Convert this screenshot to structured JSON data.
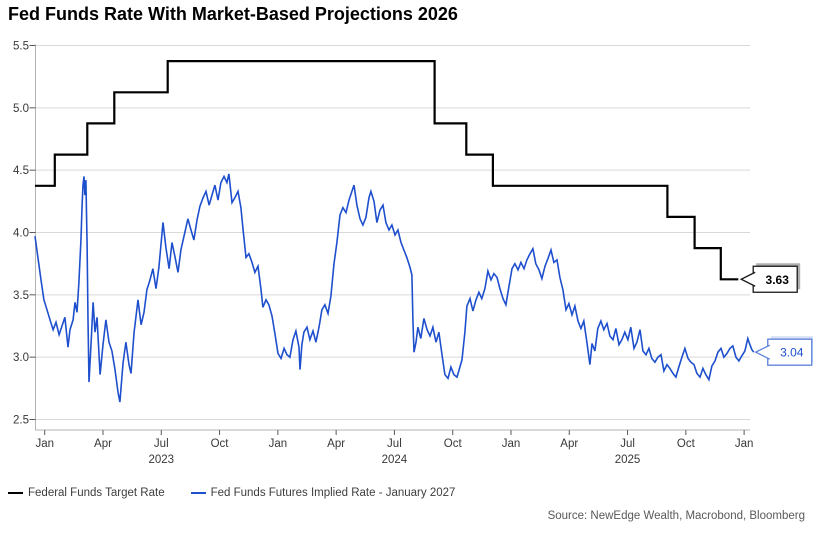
{
  "title": "Fed Funds Rate With Market-Based Projections 2026",
  "source": "Source: NewEdge Wealth, Macrobond, Bloomberg",
  "legend": [
    {
      "label": "Federal Funds Target Rate",
      "color": "#000000",
      "thickness": 2.6
    },
    {
      "label": "Fed Funds Futures Implied Rate - January 2027",
      "color": "#1e4fcd",
      "thickness": 2.2
    }
  ],
  "colors": {
    "target_rate_line": "#000000",
    "implied_rate_line": "#1e4fcd",
    "gridline": "#d9d9d9",
    "axis_line": "#b3b3b3",
    "tick_mark": "#595959",
    "tick_label": "#383838",
    "background": "#ffffff"
  },
  "chart_data": {
    "type": "line",
    "title": "Fed Funds Rate With Market-Based Projections 2026",
    "x_unit": "months since 2023-01-01",
    "x_range": [
      0,
      36.8
    ],
    "y_range": [
      2.5,
      5.5
    ],
    "grid": "horizontal",
    "legend_position": "bottom-left",
    "y_axis": {
      "values": [
        5.5,
        5.0,
        4.5,
        4.0,
        3.5,
        3.0,
        2.5
      ],
      "labels": [
        "5.5",
        "5.0",
        "4.5",
        "4.0",
        "3.5",
        "3.0",
        "2.5"
      ]
    },
    "x_axis": {
      "ticks": [
        {
          "t": 0.5,
          "label": "Jan"
        },
        {
          "t": 3.5,
          "label": "Apr"
        },
        {
          "t": 6.5,
          "label": "Jul"
        },
        {
          "t": 9.5,
          "label": "Oct"
        },
        {
          "t": 12.5,
          "label": "Jan"
        },
        {
          "t": 15.5,
          "label": "Apr"
        },
        {
          "t": 18.5,
          "label": "Jul"
        },
        {
          "t": 21.5,
          "label": "Oct"
        },
        {
          "t": 24.5,
          "label": "Jan"
        },
        {
          "t": 27.5,
          "label": "Apr"
        },
        {
          "t": 30.5,
          "label": "Jul"
        },
        {
          "t": 33.5,
          "label": "Oct"
        },
        {
          "t": 36.5,
          "label": "Jan"
        }
      ],
      "years": [
        {
          "t": 6.5,
          "label": "2023"
        },
        {
          "t": 18.5,
          "label": "2024"
        },
        {
          "t": 30.5,
          "label": "2025"
        }
      ]
    },
    "series": [
      {
        "name": "Federal Funds Target Rate",
        "style": "step",
        "color": "#000000",
        "width": 2.2,
        "end_label": "3.63",
        "points": [
          [
            0,
            4.375
          ],
          [
            1.02,
            4.625
          ],
          [
            2.69,
            4.875
          ],
          [
            4.08,
            5.125
          ],
          [
            6.83,
            5.375
          ],
          [
            20.57,
            4.875
          ],
          [
            22.2,
            4.625
          ],
          [
            23.57,
            4.375
          ],
          [
            32.55,
            4.125
          ],
          [
            33.95,
            3.875
          ],
          [
            35.3,
            3.625
          ],
          [
            36.2,
            3.625
          ]
        ]
      },
      {
        "name": "Fed Funds Futures Implied Rate - January 2027",
        "style": "line",
        "color": "#1e4fcd",
        "width": 1.6,
        "end_label": "3.04",
        "points": [
          [
            0,
            3.97
          ],
          [
            0.15,
            3.8
          ],
          [
            0.31,
            3.62
          ],
          [
            0.46,
            3.46
          ],
          [
            0.62,
            3.38
          ],
          [
            0.77,
            3.3
          ],
          [
            0.93,
            3.22
          ],
          [
            1.08,
            3.28
          ],
          [
            1.24,
            3.18
          ],
          [
            1.39,
            3.25
          ],
          [
            1.54,
            3.32
          ],
          [
            1.7,
            3.08
          ],
          [
            1.8,
            3.22
          ],
          [
            1.96,
            3.3
          ],
          [
            2.06,
            3.44
          ],
          [
            2.16,
            3.36
          ],
          [
            2.26,
            3.6
          ],
          [
            2.37,
            3.95
          ],
          [
            2.42,
            4.2
          ],
          [
            2.47,
            4.38
          ],
          [
            2.52,
            4.45
          ],
          [
            2.57,
            4.3
          ],
          [
            2.62,
            4.42
          ],
          [
            2.68,
            3.9
          ],
          [
            2.73,
            3.3
          ],
          [
            2.78,
            2.8
          ],
          [
            2.88,
            3.1
          ],
          [
            2.99,
            3.44
          ],
          [
            3.09,
            3.2
          ],
          [
            3.19,
            3.32
          ],
          [
            3.35,
            2.86
          ],
          [
            3.5,
            3.1
          ],
          [
            3.65,
            3.3
          ],
          [
            3.81,
            3.12
          ],
          [
            3.96,
            3.05
          ],
          [
            4.12,
            2.9
          ],
          [
            4.27,
            2.72
          ],
          [
            4.37,
            2.64
          ],
          [
            4.53,
            2.95
          ],
          [
            4.68,
            3.12
          ],
          [
            4.84,
            2.94
          ],
          [
            4.94,
            2.87
          ],
          [
            5.1,
            3.2
          ],
          [
            5.3,
            3.46
          ],
          [
            5.46,
            3.26
          ],
          [
            5.61,
            3.36
          ],
          [
            5.76,
            3.54
          ],
          [
            5.92,
            3.62
          ],
          [
            6.07,
            3.71
          ],
          [
            6.23,
            3.55
          ],
          [
            6.38,
            3.72
          ],
          [
            6.59,
            4.08
          ],
          [
            6.74,
            3.88
          ],
          [
            6.9,
            3.71
          ],
          [
            7.05,
            3.92
          ],
          [
            7.21,
            3.8
          ],
          [
            7.36,
            3.68
          ],
          [
            7.51,
            3.86
          ],
          [
            7.67,
            3.97
          ],
          [
            7.87,
            4.11
          ],
          [
            8.03,
            4.02
          ],
          [
            8.18,
            3.94
          ],
          [
            8.34,
            4.1
          ],
          [
            8.49,
            4.21
          ],
          [
            8.65,
            4.28
          ],
          [
            8.8,
            4.33
          ],
          [
            8.96,
            4.22
          ],
          [
            9.11,
            4.3
          ],
          [
            9.26,
            4.38
          ],
          [
            9.42,
            4.26
          ],
          [
            9.57,
            4.4
          ],
          [
            9.73,
            4.45
          ],
          [
            9.88,
            4.4
          ],
          [
            9.98,
            4.47
          ],
          [
            10.14,
            4.24
          ],
          [
            10.29,
            4.28
          ],
          [
            10.45,
            4.33
          ],
          [
            10.6,
            4.2
          ],
          [
            10.71,
            4.02
          ],
          [
            10.86,
            3.8
          ],
          [
            11.01,
            3.83
          ],
          [
            11.17,
            3.76
          ],
          [
            11.32,
            3.68
          ],
          [
            11.48,
            3.73
          ],
          [
            11.63,
            3.55
          ],
          [
            11.73,
            3.4
          ],
          [
            11.89,
            3.46
          ],
          [
            12.04,
            3.42
          ],
          [
            12.2,
            3.33
          ],
          [
            12.35,
            3.19
          ],
          [
            12.51,
            3.03
          ],
          [
            12.66,
            2.99
          ],
          [
            12.82,
            3.07
          ],
          [
            12.97,
            3.02
          ],
          [
            13.12,
            3.0
          ],
          [
            13.28,
            3.14
          ],
          [
            13.43,
            3.21
          ],
          [
            13.59,
            3.08
          ],
          [
            13.64,
            2.9
          ],
          [
            13.74,
            3.1
          ],
          [
            13.84,
            3.2
          ],
          [
            14.0,
            3.24
          ],
          [
            14.15,
            3.14
          ],
          [
            14.31,
            3.21
          ],
          [
            14.46,
            3.12
          ],
          [
            14.62,
            3.24
          ],
          [
            14.77,
            3.38
          ],
          [
            14.92,
            3.42
          ],
          [
            15.08,
            3.35
          ],
          [
            15.23,
            3.49
          ],
          [
            15.39,
            3.75
          ],
          [
            15.54,
            3.92
          ],
          [
            15.7,
            4.14
          ],
          [
            15.85,
            4.2
          ],
          [
            16.01,
            4.16
          ],
          [
            16.16,
            4.26
          ],
          [
            16.31,
            4.33
          ],
          [
            16.42,
            4.38
          ],
          [
            16.57,
            4.22
          ],
          [
            16.73,
            4.11
          ],
          [
            16.88,
            4.06
          ],
          [
            17.03,
            4.12
          ],
          [
            17.19,
            4.28
          ],
          [
            17.29,
            4.33
          ],
          [
            17.45,
            4.25
          ],
          [
            17.6,
            4.08
          ],
          [
            17.76,
            4.18
          ],
          [
            17.91,
            4.22
          ],
          [
            18.06,
            4.08
          ],
          [
            18.22,
            4.02
          ],
          [
            18.37,
            4.06
          ],
          [
            18.53,
            3.98
          ],
          [
            18.68,
            4.02
          ],
          [
            18.84,
            3.92
          ],
          [
            18.99,
            3.86
          ],
          [
            19.14,
            3.8
          ],
          [
            19.3,
            3.72
          ],
          [
            19.4,
            3.66
          ],
          [
            19.45,
            3.3
          ],
          [
            19.51,
            3.04
          ],
          [
            19.61,
            3.12
          ],
          [
            19.71,
            3.24
          ],
          [
            19.86,
            3.15
          ],
          [
            20.02,
            3.31
          ],
          [
            20.18,
            3.22
          ],
          [
            20.33,
            3.17
          ],
          [
            20.48,
            3.24
          ],
          [
            20.64,
            3.12
          ],
          [
            20.79,
            3.2
          ],
          [
            20.95,
            3.02
          ],
          [
            21.1,
            2.86
          ],
          [
            21.26,
            2.83
          ],
          [
            21.41,
            2.92
          ],
          [
            21.56,
            2.86
          ],
          [
            21.72,
            2.84
          ],
          [
            21.87,
            2.92
          ],
          [
            21.98,
            2.98
          ],
          [
            22.13,
            3.2
          ],
          [
            22.23,
            3.41
          ],
          [
            22.39,
            3.47
          ],
          [
            22.54,
            3.37
          ],
          [
            22.7,
            3.46
          ],
          [
            22.85,
            3.52
          ],
          [
            23.0,
            3.47
          ],
          [
            23.16,
            3.55
          ],
          [
            23.31,
            3.69
          ],
          [
            23.47,
            3.62
          ],
          [
            23.62,
            3.67
          ],
          [
            23.78,
            3.64
          ],
          [
            23.93,
            3.55
          ],
          [
            24.09,
            3.47
          ],
          [
            24.24,
            3.42
          ],
          [
            24.39,
            3.56
          ],
          [
            24.55,
            3.71
          ],
          [
            24.7,
            3.75
          ],
          [
            24.86,
            3.7
          ],
          [
            25.01,
            3.76
          ],
          [
            25.17,
            3.71
          ],
          [
            25.32,
            3.78
          ],
          [
            25.48,
            3.83
          ],
          [
            25.63,
            3.87
          ],
          [
            25.78,
            3.75
          ],
          [
            25.94,
            3.7
          ],
          [
            26.09,
            3.63
          ],
          [
            26.25,
            3.73
          ],
          [
            26.4,
            3.79
          ],
          [
            26.56,
            3.86
          ],
          [
            26.71,
            3.76
          ],
          [
            26.87,
            3.78
          ],
          [
            27.02,
            3.64
          ],
          [
            27.17,
            3.54
          ],
          [
            27.33,
            3.38
          ],
          [
            27.48,
            3.43
          ],
          [
            27.64,
            3.34
          ],
          [
            27.79,
            3.41
          ],
          [
            27.95,
            3.29
          ],
          [
            28.1,
            3.23
          ],
          [
            28.25,
            3.29
          ],
          [
            28.41,
            3.12
          ],
          [
            28.56,
            2.94
          ],
          [
            28.67,
            3.11
          ],
          [
            28.82,
            3.05
          ],
          [
            28.97,
            3.23
          ],
          [
            29.13,
            3.29
          ],
          [
            29.28,
            3.22
          ],
          [
            29.44,
            3.27
          ],
          [
            29.59,
            3.17
          ],
          [
            29.75,
            3.14
          ],
          [
            29.9,
            3.23
          ],
          [
            30.06,
            3.1
          ],
          [
            30.21,
            3.14
          ],
          [
            30.36,
            3.2
          ],
          [
            30.52,
            3.14
          ],
          [
            30.67,
            3.24
          ],
          [
            30.83,
            3.07
          ],
          [
            30.98,
            3.12
          ],
          [
            31.14,
            3.22
          ],
          [
            31.29,
            3.05
          ],
          [
            31.45,
            3.02
          ],
          [
            31.6,
            3.07
          ],
          [
            31.75,
            2.99
          ],
          [
            31.91,
            2.96
          ],
          [
            32.06,
            3.0
          ],
          [
            32.22,
            3.02
          ],
          [
            32.37,
            2.89
          ],
          [
            32.53,
            2.94
          ],
          [
            32.68,
            2.91
          ],
          [
            32.84,
            2.87
          ],
          [
            32.99,
            2.84
          ],
          [
            33.14,
            2.92
          ],
          [
            33.3,
            3.0
          ],
          [
            33.45,
            3.07
          ],
          [
            33.61,
            2.99
          ],
          [
            33.76,
            2.96
          ],
          [
            33.92,
            2.94
          ],
          [
            34.07,
            2.87
          ],
          [
            34.23,
            2.84
          ],
          [
            34.38,
            2.91
          ],
          [
            34.53,
            2.86
          ],
          [
            34.69,
            2.82
          ],
          [
            34.84,
            2.93
          ],
          [
            35.0,
            2.97
          ],
          [
            35.15,
            3.04
          ],
          [
            35.31,
            3.07
          ],
          [
            35.46,
            3.0
          ],
          [
            35.62,
            3.03
          ],
          [
            35.77,
            3.07
          ],
          [
            35.92,
            3.09
          ],
          [
            36.08,
            3.0
          ],
          [
            36.23,
            2.97
          ],
          [
            36.38,
            3.01
          ],
          [
            36.54,
            3.05
          ],
          [
            36.69,
            3.15
          ],
          [
            36.8,
            3.1
          ],
          [
            36.9,
            3.06
          ],
          [
            37.0,
            3.04
          ]
        ]
      }
    ],
    "callouts": [
      {
        "label": "3.63",
        "value": 3.625,
        "tip_t": 36.35,
        "border": "#1a1a1a",
        "text_color": "#000000",
        "shadow": "#b0b0b0",
        "bold": true
      },
      {
        "label": "3.04",
        "value": 3.04,
        "tip_t": 37.1,
        "border": "#5b7fd9",
        "text_color": "#1e4fcd",
        "shadow": "#d6e0f5",
        "bold": false
      }
    ]
  }
}
